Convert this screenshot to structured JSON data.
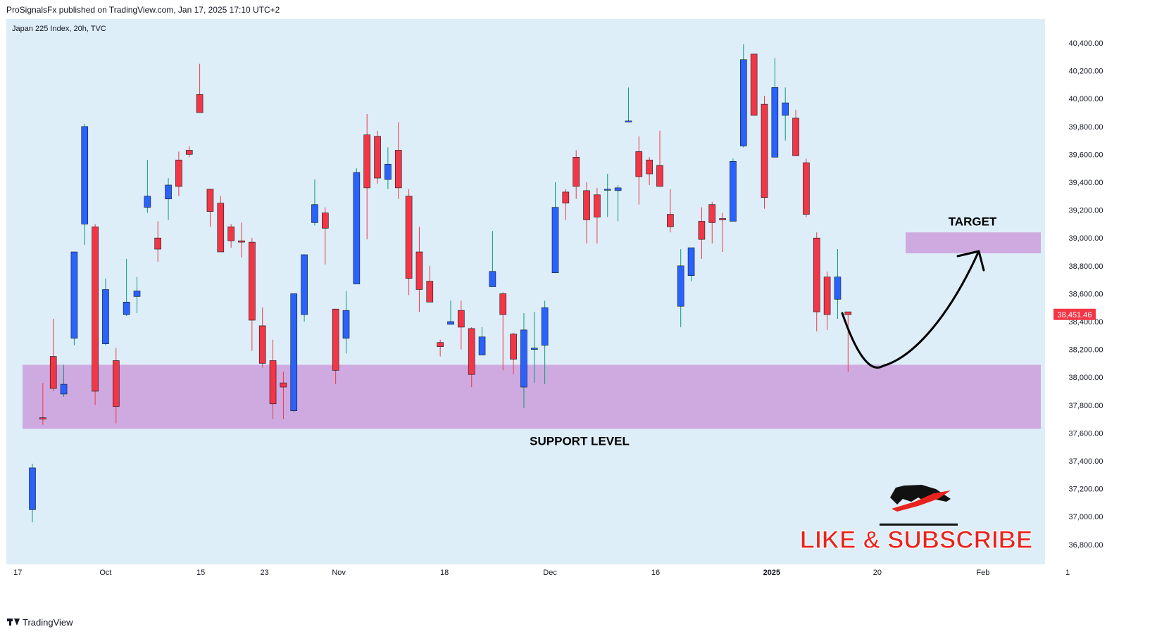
{
  "header": {
    "publisher": "ProSignalsFx published on TradingView.com, Jan 17, 2025 17:10 UTC+2"
  },
  "footer": {
    "brand": "TradingView",
    "icon": "tradingview-logo-icon"
  },
  "chart_data": {
    "type": "candlestick",
    "title": "Japan 225 Index, 20h, TVC",
    "ylim": [
      36600,
      40550
    ],
    "y_ticks": [
      36800,
      37000,
      37200,
      37400,
      37600,
      37800,
      38000,
      38200,
      38400,
      38600,
      38800,
      39000,
      39200,
      39400,
      39600,
      39800,
      40000,
      40200,
      40400
    ],
    "y_tick_labels": [
      "36,800.00",
      "37,000.00",
      "37,200.00",
      "37,400.00",
      "37,600.00",
      "37,800.00",
      "38,000.00",
      "38,200.00",
      "38,400.00",
      "38,600.00",
      "38,800.00",
      "39,000.00",
      "39,200.00",
      "39,400.00",
      "39,600.00",
      "39,800.00",
      "40,000.00",
      "40,200.00",
      "40,400.00"
    ],
    "x_ticks": [
      {
        "label": "17",
        "i": -1.4,
        "bold": false
      },
      {
        "label": "Oct",
        "i": 7.0,
        "bold": false
      },
      {
        "label": "15",
        "i": 16.1,
        "bold": false
      },
      {
        "label": "23",
        "i": 22.2,
        "bold": false
      },
      {
        "label": "Nov",
        "i": 29.3,
        "bold": false
      },
      {
        "label": "18",
        "i": 39.4,
        "bold": false
      },
      {
        "label": "Dec",
        "i": 49.5,
        "bold": false
      },
      {
        "label": "16",
        "i": 59.6,
        "bold": false
      },
      {
        "label": "2025",
        "i": 70.7,
        "bold": true
      },
      {
        "label": "20",
        "i": 80.8,
        "bold": false
      },
      {
        "label": "Feb",
        "i": 90.9,
        "bold": false
      },
      {
        "label": "1",
        "i": 99.0,
        "bold": false
      }
    ],
    "last_price": 38451.46,
    "last_price_label": "38,451.46",
    "candles": [
      [
        37050,
        37350,
        36960,
        37380
      ],
      [
        37710,
        37700,
        37660,
        37960
      ],
      [
        38150,
        37920,
        37900,
        38420
      ],
      [
        37880,
        37950,
        37860,
        38090
      ],
      [
        38280,
        38900,
        38230,
        38900
      ],
      [
        39100,
        39800,
        38950,
        39820
      ],
      [
        39080,
        37900,
        37800,
        39100
      ],
      [
        38240,
        38630,
        38230,
        38710
      ],
      [
        38120,
        37790,
        37670,
        38210
      ],
      [
        38450,
        38540,
        38440,
        38850
      ],
      [
        38580,
        38620,
        38460,
        38720
      ],
      [
        39220,
        39300,
        39180,
        39560
      ],
      [
        39000,
        38920,
        38830,
        39120
      ],
      [
        39280,
        39380,
        39130,
        39430
      ],
      [
        39560,
        39370,
        39300,
        39620
      ],
      [
        39630,
        39600,
        39580,
        39660
      ],
      [
        40030,
        39900,
        39900,
        40250
      ],
      [
        39350,
        39190,
        39080,
        39350
      ],
      [
        39250,
        38900,
        38900,
        39300
      ],
      [
        39080,
        38980,
        38930,
        39100
      ],
      [
        38980,
        38970,
        38860,
        39110
      ],
      [
        38970,
        38410,
        38190,
        39000
      ],
      [
        38370,
        38100,
        38070,
        38500
      ],
      [
        38120,
        37810,
        37700,
        38270
      ],
      [
        37960,
        37930,
        37700,
        38040
      ],
      [
        37760,
        38600,
        37750,
        38600
      ],
      [
        38450,
        38880,
        38400,
        38880
      ],
      [
        39110,
        39240,
        39090,
        39420
      ],
      [
        39180,
        39070,
        38810,
        39220
      ],
      [
        38490,
        38050,
        37950,
        38490
      ],
      [
        38280,
        38480,
        38170,
        38620
      ],
      [
        38670,
        39470,
        38670,
        39500
      ],
      [
        39740,
        39360,
        38990,
        39890
      ],
      [
        39730,
        39430,
        39390,
        39770
      ],
      [
        39420,
        39530,
        39350,
        39650
      ],
      [
        39630,
        39360,
        39280,
        39830
      ],
      [
        39300,
        38710,
        38590,
        39350
      ],
      [
        38900,
        38630,
        38470,
        39080
      ],
      [
        38690,
        38540,
        38550,
        38800
      ],
      [
        38250,
        38220,
        38150,
        38270
      ],
      [
        38380,
        38400,
        38380,
        38550
      ],
      [
        38480,
        38360,
        38200,
        38550
      ],
      [
        38350,
        38020,
        37930,
        38360
      ],
      [
        38160,
        38290,
        38160,
        38360
      ],
      [
        38650,
        38760,
        38650,
        39050
      ],
      [
        38600,
        38450,
        38050,
        38610
      ],
      [
        38310,
        38130,
        38020,
        38320
      ],
      [
        37930,
        38340,
        37780,
        38460
      ],
      [
        38200,
        38210,
        37960,
        38470
      ],
      [
        38230,
        38500,
        37950,
        38550
      ],
      [
        38750,
        39220,
        38750,
        39400
      ],
      [
        39330,
        39250,
        39130,
        39350
      ],
      [
        39580,
        39370,
        39280,
        39630
      ],
      [
        39340,
        39130,
        38960,
        39400
      ],
      [
        39310,
        39150,
        38960,
        39360
      ],
      [
        39350,
        39350,
        39150,
        39460
      ],
      [
        39340,
        39360,
        39120,
        39380
      ],
      [
        39840,
        39840,
        39830,
        40080
      ],
      [
        39620,
        39440,
        39240,
        39730
      ],
      [
        39560,
        39460,
        39380,
        39580
      ],
      [
        39520,
        39370,
        39380,
        39770
      ],
      [
        39170,
        39080,
        39040,
        39350
      ],
      [
        38510,
        38800,
        38360,
        38920
      ],
      [
        38730,
        38930,
        38690,
        38910
      ],
      [
        39120,
        38990,
        38850,
        39220
      ],
      [
        39240,
        39110,
        38960,
        39260
      ],
      [
        39140,
        39130,
        38900,
        39180
      ],
      [
        39120,
        39550,
        39130,
        39570
      ],
      [
        39660,
        40280,
        39650,
        40390
      ],
      [
        40320,
        39880,
        39880,
        40320
      ],
      [
        39960,
        39290,
        39210,
        40020
      ],
      [
        39580,
        40080,
        39580,
        40290
      ],
      [
        39880,
        39970,
        39700,
        40080
      ],
      [
        39860,
        39590,
        39600,
        39920
      ],
      [
        39540,
        39170,
        39150,
        39570
      ],
      [
        39000,
        38470,
        38330,
        39040
      ],
      [
        38720,
        38450,
        38340,
        38760
      ],
      [
        38560,
        38720,
        38420,
        38920
      ],
      [
        38470,
        38450,
        38040,
        38470
      ]
    ],
    "annotations": {
      "support_label": "SUPPORT LEVEL",
      "support_zone": [
        37630,
        38090
      ],
      "target_label": "TARGET",
      "target_zone": [
        38890,
        39040
      ]
    }
  },
  "branding": {
    "slogan": "LIKE & SUBSCRIBE",
    "bull_icon": "charging-bull-icon"
  },
  "colors": {
    "up": "#2962ff",
    "down": "#f23645",
    "wick_up": "#089981",
    "wick_down": "#f23645",
    "background": "#ddeef8",
    "zone": "#cfaae0",
    "price_tag": "#f23645",
    "slogan": "#e8231d"
  }
}
